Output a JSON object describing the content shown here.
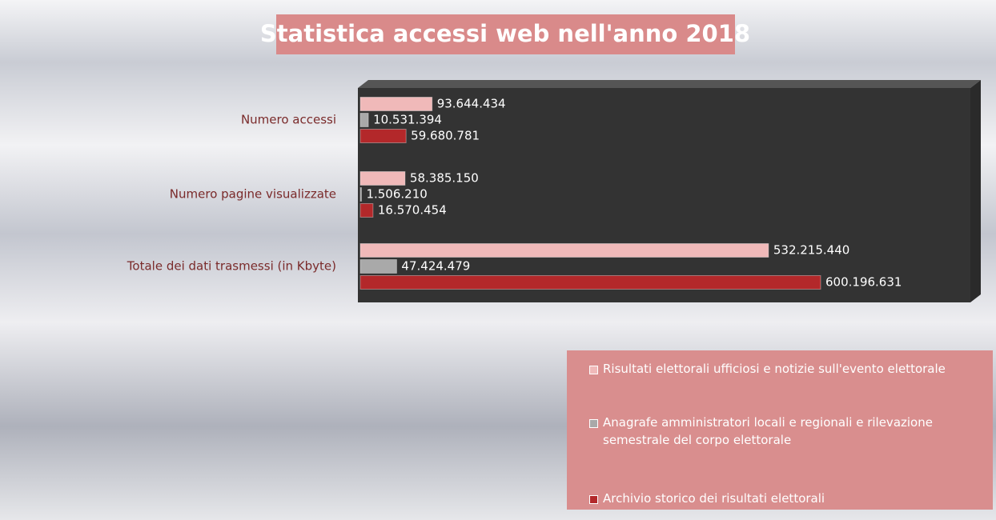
{
  "chart_data": {
    "type": "bar",
    "orientation": "horizontal",
    "title": "Statistica accessi web nell'anno 2018",
    "categories": [
      "Numero accessi",
      "Numero pagine visualizzate",
      "Totale dei dati trasmessi (in Kbyte)"
    ],
    "series": [
      {
        "name": "Risultati elettorali ufficiosi e notizie sull'evento elettorale",
        "color": "#f0b9b9",
        "values": [
          93644434,
          58385150,
          532215440
        ],
        "value_labels": [
          "93.644.434",
          "58.385.150",
          "532.215.440"
        ]
      },
      {
        "name": "Anagrafe amministratori locali e regionali e rilevazione semestrale del corpo elettorale",
        "color": "#a9a9a9",
        "values": [
          10531394,
          1506210,
          47424479
        ],
        "value_labels": [
          "10.531.394",
          "1.506.210",
          "47.424.479"
        ]
      },
      {
        "name": "Archivio storico dei risultati elettorali",
        "color": "#b3282a",
        "values": [
          59680781,
          16570454,
          600196631
        ],
        "value_labels": [
          "59.680.781",
          "16.570.454",
          "600.196.631"
        ]
      }
    ],
    "legend": "bottom-right"
  }
}
